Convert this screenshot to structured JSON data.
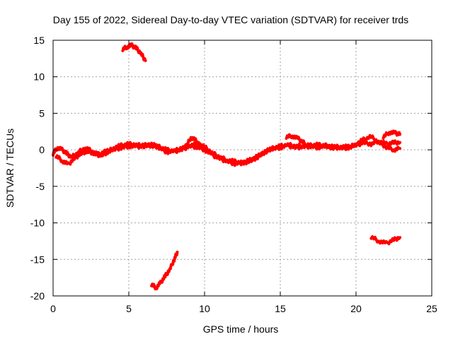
{
  "chart_data": {
    "type": "line",
    "title": "Day 155 of 2022, Sidereal Day-to-day VTEC variation (SDTVAR) for receiver trds",
    "xlabel": "GPS time / hours",
    "ylabel": "SDTVAR / TECUs",
    "xlim": [
      0,
      25
    ],
    "ylim": [
      -20,
      15
    ],
    "xticks": [
      0,
      5,
      10,
      15,
      20,
      25
    ],
    "yticks": [
      15,
      10,
      5,
      0,
      -5,
      -10,
      -15,
      -20
    ],
    "grid": true,
    "series_color": "#ff0000",
    "series": [
      {
        "name": "trace-main-1",
        "x": [
          0.0,
          0.3,
          0.6,
          0.9,
          1.2,
          1.6,
          2.0,
          2.4,
          2.8,
          3.2,
          3.6,
          4.0,
          4.5,
          5.0,
          5.5,
          6.0,
          6.5,
          7.0,
          7.5,
          8.0,
          8.5,
          9.0,
          9.5,
          10.0,
          10.5,
          11.0,
          11.5,
          12.0,
          12.5,
          13.0,
          13.5,
          14.0,
          14.5,
          15.0,
          15.5,
          16.0,
          16.5,
          17.0,
          17.5,
          18.0,
          18.5,
          19.0,
          19.5,
          20.0,
          20.5,
          21.0,
          21.5,
          22.0,
          22.5,
          22.9
        ],
        "y": [
          -0.5,
          0.3,
          0.0,
          -0.5,
          -1.0,
          -0.5,
          0.2,
          0.0,
          -0.6,
          -0.8,
          -0.3,
          0.3,
          0.6,
          0.8,
          0.7,
          0.5,
          0.6,
          0.4,
          0.0,
          -0.2,
          0.3,
          0.6,
          0.8,
          0.4,
          -0.4,
          -1.0,
          -1.4,
          -1.6,
          -1.8,
          -1.6,
          -1.0,
          -0.3,
          0.2,
          0.5,
          0.7,
          0.5,
          0.6,
          0.6,
          0.7,
          0.4,
          0.3,
          0.5,
          0.4,
          0.6,
          1.0,
          0.8,
          1.2,
          0.8,
          1.0,
          1.0
        ]
      },
      {
        "name": "trace-main-2",
        "x": [
          0.2,
          0.6,
          1.0,
          1.4,
          1.8,
          2.2,
          2.6,
          3.0,
          3.5,
          4.0,
          4.5,
          5.0,
          5.5,
          6.0,
          6.5,
          7.0,
          7.5,
          8.0,
          8.5,
          9.0,
          9.5,
          10.0,
          10.5,
          11.0,
          11.5,
          12.0,
          12.5,
          13.0,
          13.5,
          14.0,
          14.5,
          15.0,
          15.5,
          16.0,
          16.5,
          17.0,
          17.5,
          18.0,
          18.5,
          19.0,
          19.5,
          20.0,
          20.5,
          21.0,
          21.5,
          22.0,
          22.5,
          22.9
        ],
        "y": [
          -0.8,
          -1.5,
          -2.0,
          -1.2,
          -0.6,
          -0.2,
          -0.4,
          -0.6,
          -0.2,
          0.0,
          0.3,
          0.5,
          0.4,
          0.6,
          0.8,
          0.3,
          -0.3,
          -0.2,
          0.0,
          0.5,
          0.4,
          0.0,
          -0.7,
          -1.2,
          -1.6,
          -1.9,
          -1.8,
          -1.4,
          -0.9,
          -0.2,
          0.2,
          0.3,
          0.6,
          0.3,
          0.4,
          0.5,
          0.3,
          0.6,
          0.4,
          0.2,
          0.3,
          0.8,
          1.4,
          1.8,
          1.0,
          0.4,
          0.0,
          0.2
        ]
      },
      {
        "name": "trace-bump-9h",
        "x": [
          8.8,
          9.1,
          9.4,
          9.7,
          10.0
        ],
        "y": [
          0.5,
          1.7,
          1.3,
          0.6,
          0.2
        ]
      },
      {
        "name": "trace-bump-15h",
        "x": [
          15.4,
          15.8,
          16.2,
          16.6
        ],
        "y": [
          1.8,
          1.9,
          1.5,
          0.9
        ]
      },
      {
        "name": "trace-upper-22h",
        "x": [
          21.8,
          22.2,
          22.6,
          22.9
        ],
        "y": [
          1.8,
          2.4,
          2.3,
          2.1
        ]
      },
      {
        "name": "trace-arc-high",
        "x": [
          4.6,
          4.9,
          5.2,
          5.5,
          5.8,
          6.1
        ],
        "y": [
          13.8,
          14.1,
          14.3,
          13.9,
          13.2,
          12.2
        ]
      },
      {
        "name": "trace-arc-low",
        "x": [
          6.5,
          6.8,
          7.1,
          7.4,
          7.7,
          8.0,
          8.2
        ],
        "y": [
          -18.4,
          -18.9,
          -18.2,
          -17.3,
          -16.4,
          -15.0,
          -14.0
        ]
      },
      {
        "name": "trace-arc-right",
        "x": [
          21.0,
          21.5,
          22.0,
          22.5,
          22.9
        ],
        "y": [
          -11.9,
          -12.5,
          -12.8,
          -12.3,
          -12.0
        ]
      }
    ]
  }
}
